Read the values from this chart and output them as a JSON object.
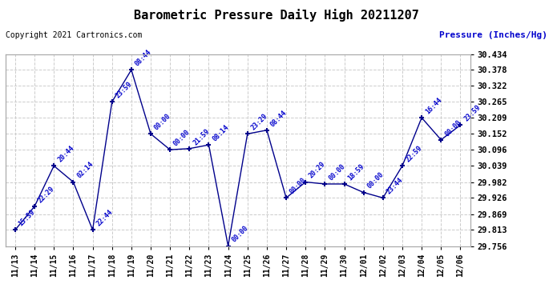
{
  "title": "Barometric Pressure Daily High 20211207",
  "ylabel": "Pressure (Inches/Hg)",
  "copyright": "Copyright 2021 Cartronics.com",
  "line_color": "#00008B",
  "label_color": "#0000CC",
  "background_color": "#ffffff",
  "grid_color": "#cccccc",
  "ylim": [
    29.756,
    30.434
  ],
  "yticks": [
    29.756,
    29.813,
    29.869,
    29.926,
    29.982,
    30.039,
    30.096,
    30.152,
    30.209,
    30.265,
    30.322,
    30.378,
    30.434
  ],
  "points": [
    {
      "x": 0,
      "date": "11/13",
      "time": "15:59",
      "value": 29.813
    },
    {
      "x": 1,
      "date": "11/14",
      "time": "22:29",
      "value": 29.896
    },
    {
      "x": 2,
      "date": "11/15",
      "time": "20:44",
      "value": 30.039
    },
    {
      "x": 3,
      "date": "11/16",
      "time": "02:14",
      "value": 29.982
    },
    {
      "x": 4,
      "date": "11/17",
      "time": "22:44",
      "value": 29.813
    },
    {
      "x": 5,
      "date": "11/18",
      "time": "23:59",
      "value": 30.265
    },
    {
      "x": 6,
      "date": "11/19",
      "time": "08:44",
      "value": 30.378
    },
    {
      "x": 7,
      "date": "11/20",
      "time": "00:00",
      "value": 30.152
    },
    {
      "x": 8,
      "date": "11/21",
      "time": "00:00",
      "value": 30.096
    },
    {
      "x": 9,
      "date": "11/22",
      "time": "21:59",
      "value": 30.1
    },
    {
      "x": 10,
      "date": "11/23",
      "time": "08:14",
      "value": 30.113
    },
    {
      "x": 11,
      "date": "11/24",
      "time": "00:00",
      "value": 29.756
    },
    {
      "x": 12,
      "date": "11/25",
      "time": "23:29",
      "value": 30.152
    },
    {
      "x": 13,
      "date": "11/26",
      "time": "08:44",
      "value": 30.165
    },
    {
      "x": 14,
      "date": "11/27",
      "time": "00:00",
      "value": 29.926
    },
    {
      "x": 15,
      "date": "11/28",
      "time": "20:29",
      "value": 29.982
    },
    {
      "x": 16,
      "date": "11/29",
      "time": "00:00",
      "value": 29.975
    },
    {
      "x": 17,
      "date": "11/30",
      "time": "18:59",
      "value": 29.975
    },
    {
      "x": 18,
      "date": "12/01",
      "time": "00:00",
      "value": 29.945
    },
    {
      "x": 19,
      "date": "12/02",
      "time": "23:44",
      "value": 29.926
    },
    {
      "x": 20,
      "date": "12/03",
      "time": "22:59",
      "value": 30.039
    },
    {
      "x": 21,
      "date": "12/04",
      "time": "16:44",
      "value": 30.209
    },
    {
      "x": 22,
      "date": "12/05",
      "time": "00:00",
      "value": 30.131
    },
    {
      "x": 23,
      "date": "12/06",
      "time": "23:59",
      "value": 30.183
    }
  ]
}
